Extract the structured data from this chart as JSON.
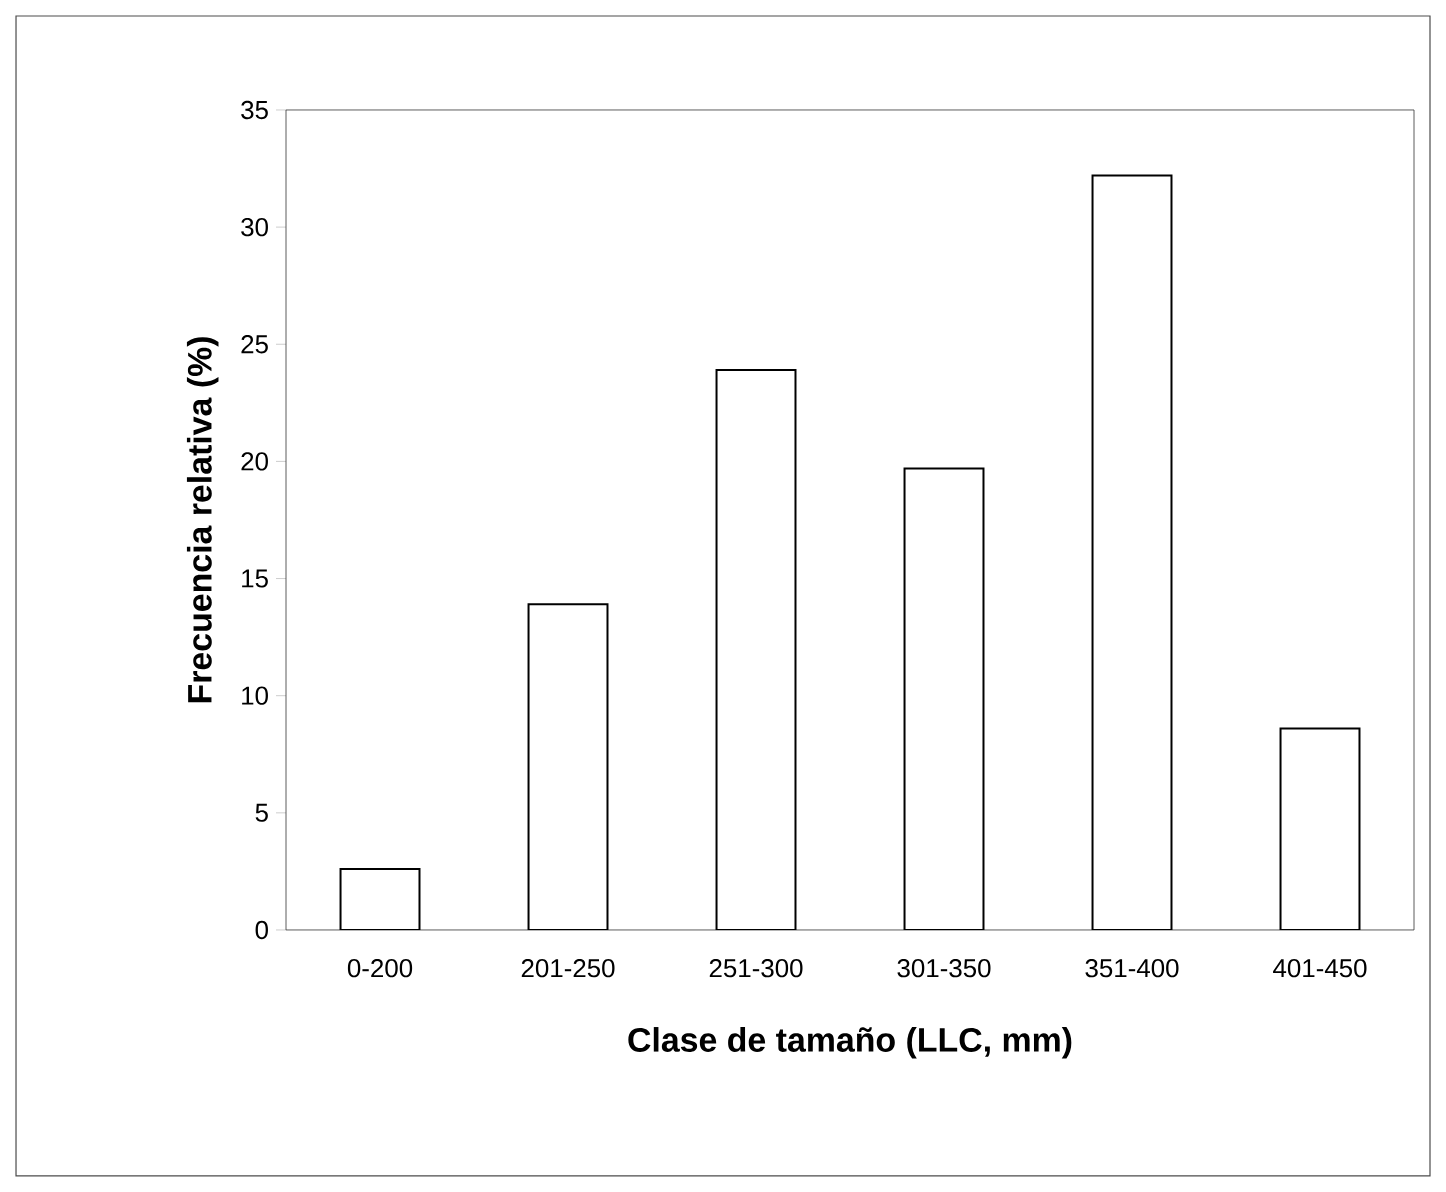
{
  "chart_data": {
    "type": "bar",
    "xlabel": "Clase de tamaño (LLC, mm)",
    "ylabel": "Frecuencia relativa (%)",
    "categories": [
      "0-200",
      "201-250",
      "251-300",
      "301-350",
      "351-400",
      "401-450"
    ],
    "values": [
      2.6,
      13.9,
      23.9,
      19.7,
      32.2,
      8.6
    ],
    "color": "#ffffff",
    "ylim": [
      0,
      35
    ],
    "yticks": [
      0,
      5,
      10,
      15,
      20,
      25,
      30,
      35
    ],
    "grid": false
  }
}
